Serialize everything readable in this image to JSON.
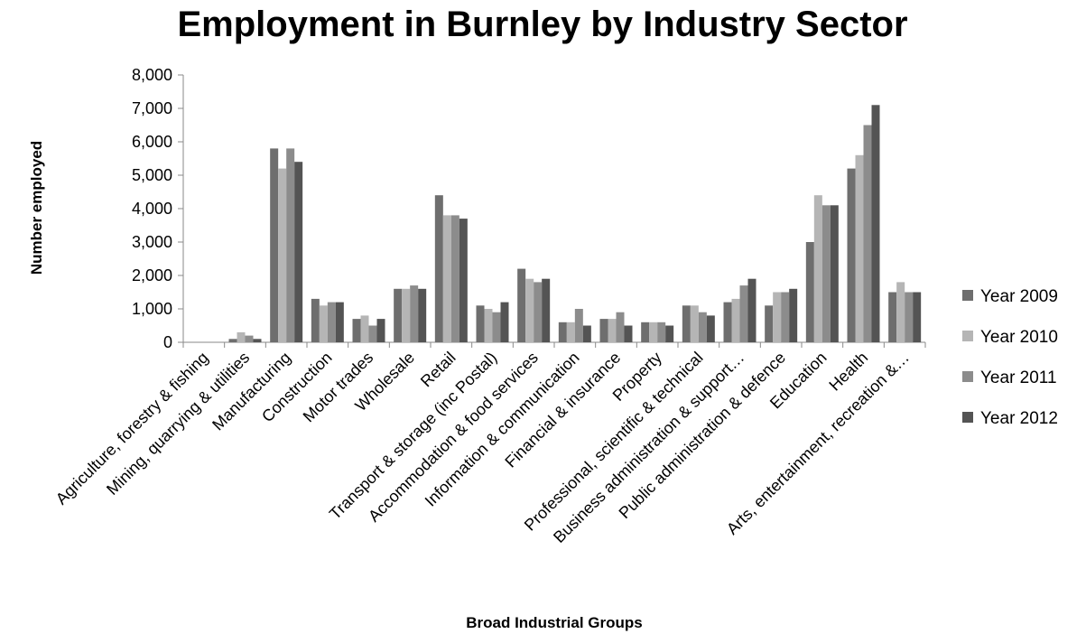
{
  "chart_data": {
    "type": "bar",
    "title": "Employment in Burnley by Industry Sector",
    "xlabel": "Broad Industrial Groups",
    "ylabel": "Number employed",
    "ylim": [
      0,
      8000
    ],
    "yticks": [
      "0",
      "1,000",
      "2,000",
      "3,000",
      "4,000",
      "5,000",
      "6,000",
      "7,000",
      "8,000"
    ],
    "grid": false,
    "legend_position": "right",
    "categories": [
      "Agriculture, forestry & fishing",
      "Mining, quarrying & utilities",
      "Manufacturing",
      "Construction",
      "Motor trades",
      "Wholesale",
      "Retail",
      "Transport & storage (inc Postal)",
      "Accommodation & food services",
      "Information & communication",
      "Financial & insurance",
      "Property",
      "Professional, scientific & technical",
      "Business administration & support…",
      "Public administration & defence",
      "Education",
      "Health",
      "Arts, entertainment, recreation &…"
    ],
    "series": [
      {
        "name": "Year 2009",
        "color": "#6e6e6e",
        "values": [
          0,
          100,
          5800,
          1300,
          700,
          1600,
          4400,
          1100,
          2200,
          600,
          700,
          600,
          1100,
          1200,
          1100,
          3000,
          5200,
          1500
        ]
      },
      {
        "name": "Year 2010",
        "color": "#b5b5b5",
        "values": [
          0,
          300,
          5200,
          1100,
          800,
          1600,
          3800,
          1000,
          1900,
          600,
          700,
          600,
          1100,
          1300,
          1500,
          4400,
          5600,
          1800
        ]
      },
      {
        "name": "Year 2011",
        "color": "#8c8c8c",
        "values": [
          0,
          200,
          5800,
          1200,
          500,
          1700,
          3800,
          900,
          1800,
          1000,
          900,
          600,
          900,
          1700,
          1500,
          4100,
          6500,
          1500
        ]
      },
      {
        "name": "Year 2012",
        "color": "#545454",
        "values": [
          0,
          100,
          5400,
          1200,
          700,
          1600,
          3700,
          1200,
          1900,
          500,
          500,
          500,
          800,
          1900,
          1600,
          4100,
          7100,
          1500
        ]
      }
    ]
  }
}
